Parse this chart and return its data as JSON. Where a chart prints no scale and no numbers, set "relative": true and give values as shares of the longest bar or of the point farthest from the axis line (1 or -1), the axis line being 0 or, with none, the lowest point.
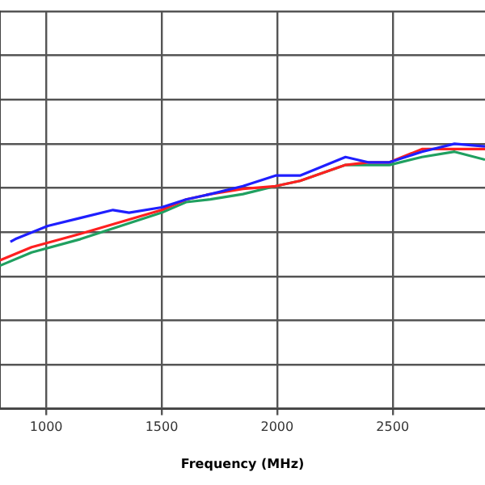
{
  "chart_data": {
    "type": "line",
    "xlabel": "Frequency (MHz)",
    "relative": true,
    "xlim": [
      800,
      2900
    ],
    "xticks": [
      1000,
      1500,
      2000,
      2500
    ],
    "grid": true,
    "legend": false,
    "marker": "none",
    "line_style": "solid",
    "series": [
      {
        "color": "#1f1fff",
        "x": [
          845,
          866,
          1007,
          1148,
          1289,
          1359,
          1500,
          1606,
          1711,
          1852,
          1993,
          2099,
          2296,
          2394,
          2486,
          2627,
          2768,
          2900
        ],
        "values": [
          0.63,
          0.64,
          0.69,
          0.72,
          0.75,
          0.74,
          0.76,
          0.79,
          0.81,
          0.84,
          0.88,
          0.88,
          0.95,
          0.93,
          0.93,
          0.97,
          1.0,
          0.99
        ]
      },
      {
        "color": "#ff2020",
        "x": [
          800,
          937,
          1148,
          1500,
          1606,
          1711,
          1852,
          1993,
          2099,
          2296,
          2394,
          2486,
          2627,
          2768,
          2900
        ],
        "values": [
          0.56,
          0.61,
          0.66,
          0.75,
          0.79,
          0.81,
          0.83,
          0.84,
          0.86,
          0.92,
          0.93,
          0.93,
          0.98,
          0.98,
          0.98
        ]
      },
      {
        "color": "#20a060",
        "x": [
          800,
          937,
          1148,
          1500,
          1606,
          1711,
          1852,
          1993,
          2099,
          2296,
          2486,
          2627,
          2768,
          2900
        ],
        "values": [
          0.54,
          0.59,
          0.64,
          0.74,
          0.78,
          0.79,
          0.81,
          0.84,
          0.86,
          0.92,
          0.92,
          0.95,
          0.97,
          0.94
        ]
      }
    ]
  }
}
